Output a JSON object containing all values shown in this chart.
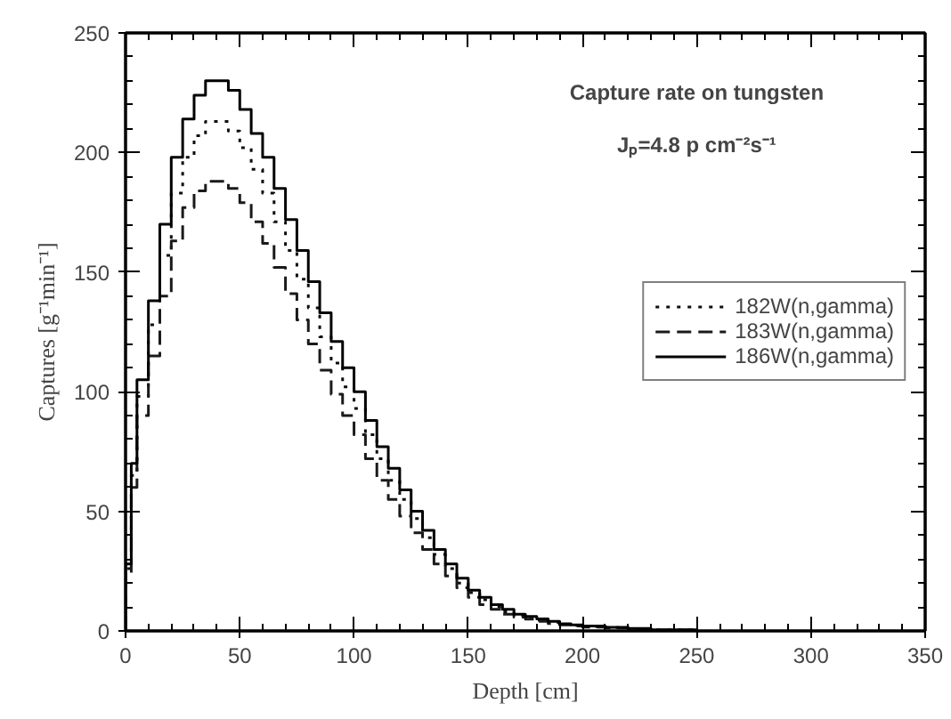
{
  "chart_data": {
    "type": "histogram",
    "title": "Capture rate on tungsten",
    "subtitle": "Jₚ=4.8 p cm⁻²s⁻¹",
    "xlabel": "Depth [cm]",
    "ylabel": "Captures [g⁻¹min⁻¹]",
    "bins": [
      0,
      2.5,
      5,
      10,
      15,
      20,
      25,
      30,
      35,
      40,
      45,
      50,
      55,
      60,
      65,
      70,
      75,
      80,
      85,
      90,
      95,
      100,
      105,
      110,
      115,
      120,
      125,
      130,
      135,
      140,
      145,
      150,
      155,
      160,
      165,
      170,
      175,
      180,
      185,
      190,
      195,
      200,
      210,
      220,
      230,
      250
    ],
    "series": [
      {
        "name": "182W(n,gamma)",
        "color": "#0d0d0d",
        "line_style": "dotted",
        "values": [
          26,
          65,
          98,
          128,
          157,
          183,
          198,
          207,
          213,
          213,
          209,
          202,
          193,
          183,
          171,
          159,
          147,
          135,
          123,
          112,
          102,
          93,
          82,
          72,
          63,
          55,
          47,
          39,
          32,
          26,
          20,
          16,
          13,
          10,
          8,
          6.5,
          5.5,
          4.5,
          3.5,
          2.8,
          2.3,
          1.8,
          1.4,
          0.9,
          0.5
        ]
      },
      {
        "name": "183W(n,gamma)",
        "color": "#1a1a1a",
        "line_style": "dashed",
        "values": [
          24,
          60,
          90,
          115,
          140,
          163,
          177,
          184,
          188,
          188,
          185,
          179,
          171,
          162,
          152,
          141,
          130,
          120,
          109,
          99,
          90,
          82,
          72,
          63,
          55,
          48,
          41,
          34,
          28,
          23,
          18,
          14,
          11,
          9,
          7,
          5.8,
          4.9,
          4,
          3.1,
          2.5,
          2,
          1.6,
          1.2,
          0.8,
          0.4
        ]
      },
      {
        "name": "186W(n,gamma)",
        "color": "#000000",
        "line_style": "solid",
        "values": [
          28,
          70,
          105,
          138,
          170,
          198,
          214,
          224,
          230,
          230,
          226,
          218,
          208,
          198,
          185,
          172,
          159,
          146,
          133,
          121,
          110,
          100,
          88,
          77,
          68,
          59,
          50,
          42,
          34,
          28,
          22,
          17,
          14,
          11,
          9,
          7,
          6,
          5,
          4,
          3,
          2.5,
          2,
          1.5,
          1,
          0.5
        ]
      }
    ],
    "xlim": [
      0,
      350
    ],
    "xticks": [
      0,
      50,
      100,
      150,
      200,
      250,
      300,
      350
    ],
    "ylim": [
      0,
      250
    ],
    "yticks": [
      0,
      50,
      100,
      150,
      200,
      250
    ],
    "grid": false,
    "legend": "right"
  }
}
